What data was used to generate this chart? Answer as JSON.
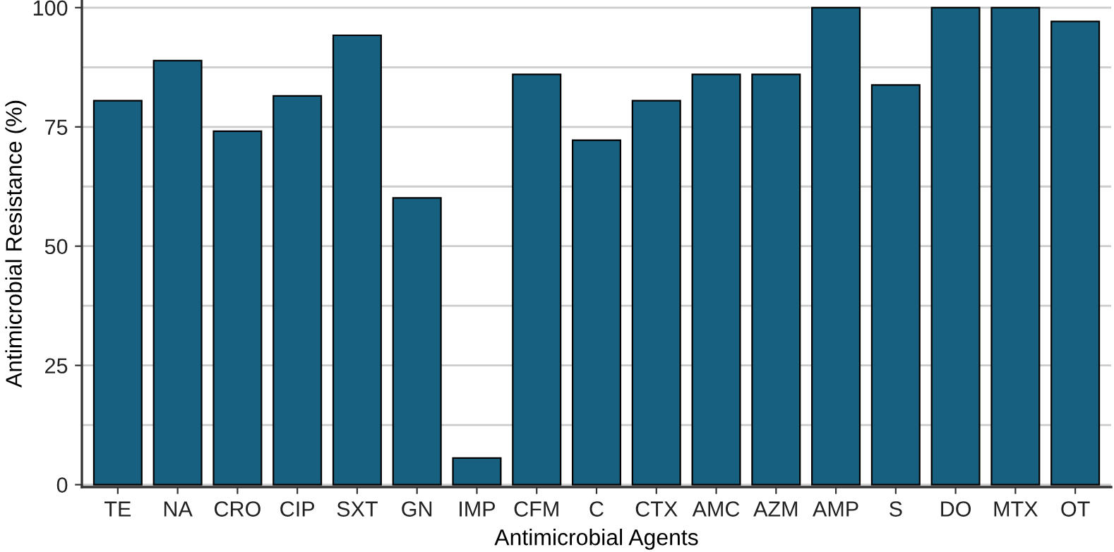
{
  "chart_data": {
    "type": "bar",
    "xlabel": "Antimicrobial Agents",
    "ylabel": "Antimicrobial Resistance (%)",
    "categories": [
      "TE",
      "NA",
      "CRO",
      "CIP",
      "SXT",
      "GN",
      "IMP",
      "CFM",
      "C",
      "CTX",
      "AMC",
      "AZM",
      "AMP",
      "S",
      "DO",
      "MTX",
      "OT"
    ],
    "values": [
      80.5,
      88.9,
      74.1,
      81.5,
      94.2,
      60.1,
      5.6,
      86.0,
      72.2,
      80.5,
      86.0,
      86.0,
      100,
      83.8,
      100,
      100,
      97.1
    ],
    "color": "#17607f",
    "ylim": [
      -0.5,
      101.6
    ],
    "yticks": [
      0,
      {
        "value": 12.5,
        "label": null
      },
      25,
      {
        "value": 37.5,
        "label": null
      },
      50,
      {
        "value": 62.5,
        "label": null
      },
      75,
      {
        "value": 87.5,
        "label": null
      },
      100
    ],
    "grid": "y",
    "legend": false
  }
}
